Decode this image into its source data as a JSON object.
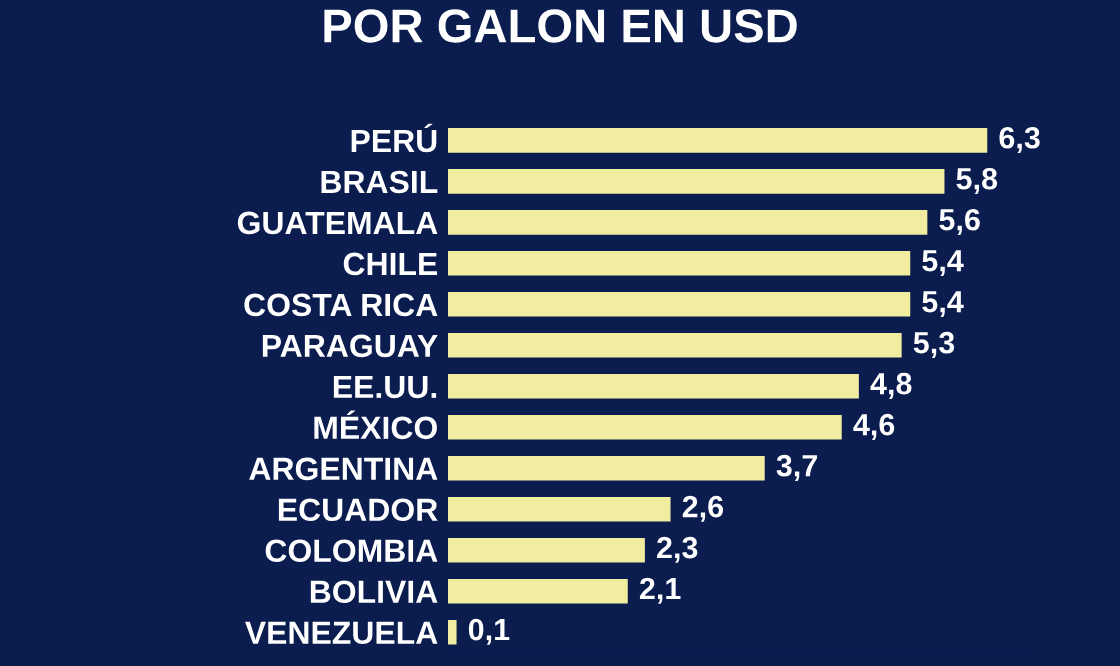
{
  "chart_data": {
    "type": "bar",
    "orientation": "horizontal",
    "title": "POR GALON EN USD",
    "categories": [
      "PERÚ",
      "BRASIL",
      "GUATEMALA",
      "CHILE",
      "COSTA RICA",
      "PARAGUAY",
      "EE.UU.",
      "MÉXICO",
      "ARGENTINA",
      "ECUADOR",
      "COLOMBIA",
      "BOLIVIA",
      "VENEZUELA"
    ],
    "values": [
      6.3,
      5.8,
      5.6,
      5.4,
      5.4,
      5.3,
      4.8,
      4.6,
      3.7,
      2.6,
      2.3,
      2.1,
      0.1
    ],
    "value_labels": [
      "6,3",
      "5,8",
      "5,6",
      "5,4",
      "5,4",
      "5,3",
      "4,8",
      "4,6",
      "3,7",
      "2,6",
      "2,3",
      "2,1",
      "0,1"
    ],
    "color": "#f0eca0",
    "tick_labels": "y",
    "grid": false,
    "legend": false
  }
}
